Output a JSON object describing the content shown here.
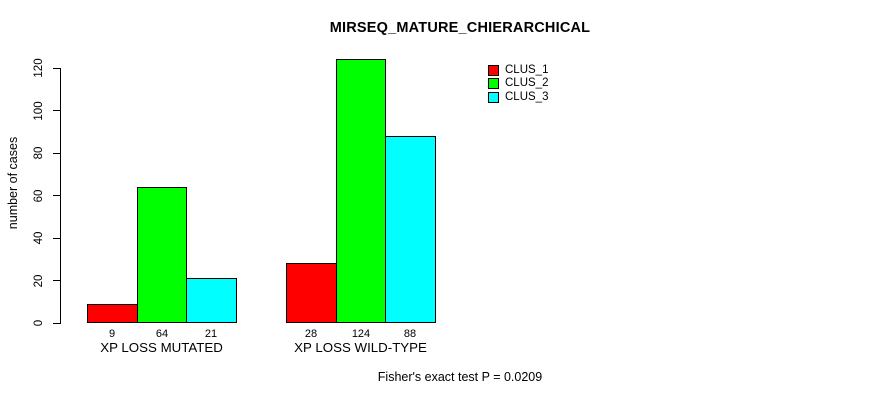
{
  "chart_data": {
    "type": "bar",
    "title": "MIRSEQ_MATURE_CHIERARCHICAL",
    "subtitle": "Fisher's exact test P = 0.0209",
    "xlabel": "",
    "ylabel": "number of cases",
    "categories": [
      "XP LOSS MUTATED",
      "XP LOSS WILD-TYPE"
    ],
    "series": [
      {
        "name": "CLUS_1",
        "color": "#ff0000",
        "values": [
          9,
          28
        ]
      },
      {
        "name": "CLUS_2",
        "color": "#00ff00",
        "values": [
          64,
          124
        ]
      },
      {
        "name": "CLUS_3",
        "color": "#00ffff",
        "values": [
          21,
          88
        ]
      }
    ],
    "bar_value_labels": [
      [
        "9",
        "64",
        "21"
      ],
      [
        "28",
        "124",
        "88"
      ]
    ],
    "yticks": [
      "0",
      "20",
      "40",
      "60",
      "80",
      "100",
      "120"
    ],
    "ylim": [
      0,
      120
    ],
    "grid": false,
    "legend_position": "top-right",
    "background_color": "#ffffff",
    "axis_color": "#000000"
  }
}
